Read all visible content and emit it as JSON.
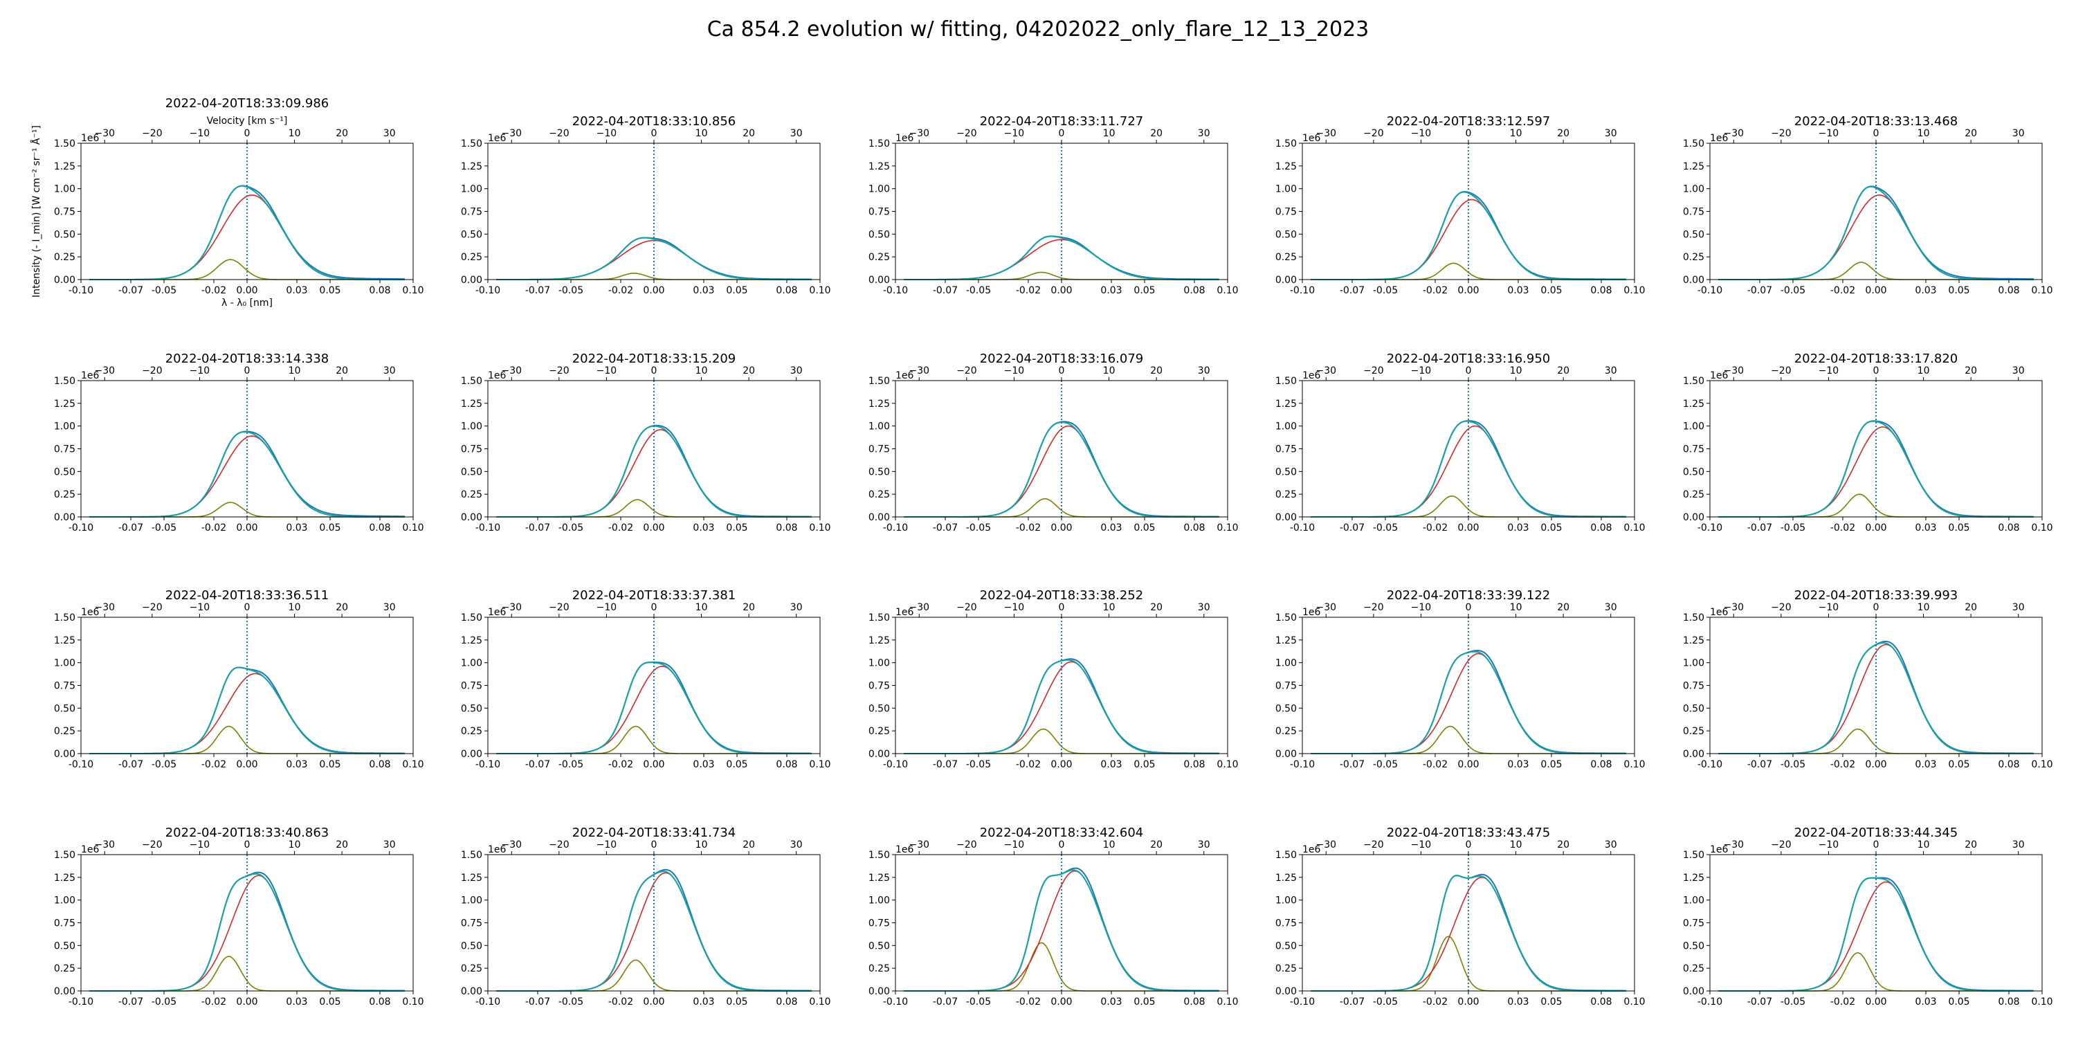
{
  "suptitle": "Ca 854.2 evolution w/ fitting, 04202022_only_flare_12_13_2023",
  "axis_text": {
    "xlabel": "λ - λ₀ [nm]",
    "ylabel": "Intensity (- I_min) [W cm⁻² sr⁻¹ Å⁻¹]",
    "top_xlabel": "Velocity [km s⁻¹]",
    "offset_label": "1e6",
    "x_ticks": [
      "-0.10",
      "-0.07",
      "-0.05",
      "-0.02",
      "0.00",
      "0.03",
      "0.05",
      "0.08",
      "0.10"
    ],
    "top_ticks": [
      "−30",
      "−20",
      "−10",
      "0",
      "10",
      "20",
      "30"
    ],
    "y_ticks": [
      "0.00",
      "0.25",
      "0.50",
      "0.75",
      "1.00",
      "1.25",
      "1.50"
    ]
  },
  "colors": {
    "observed": "#1f77b4",
    "total_fit": "#17a2a2",
    "main_gaussian": "#d62728",
    "secondary_gaussian": "#808000",
    "reference_line": "#1f77b4"
  },
  "chart_data": {
    "type": "line",
    "layout": "4 rows x 5 columns of small multiples",
    "xlim": [
      -0.1,
      0.1
    ],
    "ylim": [
      0,
      1.5
    ],
    "y_scale_offset": "1e6",
    "top_axis_velocity_lim": [
      -35,
      35
    ],
    "reference_vline_x": 0.0,
    "panels": [
      {
        "title": "2022-04-20T18:33:09.986",
        "main": {
          "amp": 0.93,
          "center": 0.003,
          "width": 0.018
        },
        "secondary": {
          "amp": 0.22,
          "center": -0.01,
          "width": 0.008
        },
        "tail": 0.02
      },
      {
        "title": "2022-04-20T18:33:10.856",
        "main": {
          "amp": 0.43,
          "center": 0.0,
          "width": 0.02
        },
        "secondary": {
          "amp": 0.07,
          "center": -0.012,
          "width": 0.007
        },
        "tail": 0.01
      },
      {
        "title": "2022-04-20T18:33:11.727",
        "main": {
          "amp": 0.44,
          "center": 0.0,
          "width": 0.02
        },
        "secondary": {
          "amp": 0.08,
          "center": -0.012,
          "width": 0.007
        },
        "tail": 0.01
      },
      {
        "title": "2022-04-20T18:33:12.597",
        "main": {
          "amp": 0.88,
          "center": 0.002,
          "width": 0.016
        },
        "secondary": {
          "amp": 0.18,
          "center": -0.009,
          "width": 0.007
        },
        "tail": 0.01
      },
      {
        "title": "2022-04-20T18:33:13.468",
        "main": {
          "amp": 0.93,
          "center": 0.002,
          "width": 0.017
        },
        "secondary": {
          "amp": 0.19,
          "center": -0.009,
          "width": 0.007
        },
        "tail": 0.02
      },
      {
        "title": "2022-04-20T18:33:14.338",
        "main": {
          "amp": 0.89,
          "center": 0.003,
          "width": 0.017
        },
        "secondary": {
          "amp": 0.16,
          "center": -0.01,
          "width": 0.007
        },
        "tail": 0.02
      },
      {
        "title": "2022-04-20T18:33:15.209",
        "main": {
          "amp": 0.96,
          "center": 0.004,
          "width": 0.016
        },
        "secondary": {
          "amp": 0.19,
          "center": -0.01,
          "width": 0.007
        },
        "tail": 0.01
      },
      {
        "title": "2022-04-20T18:33:16.079",
        "main": {
          "amp": 1.0,
          "center": 0.004,
          "width": 0.016
        },
        "secondary": {
          "amp": 0.2,
          "center": -0.01,
          "width": 0.007
        },
        "tail": 0.01
      },
      {
        "title": "2022-04-20T18:33:16.950",
        "main": {
          "amp": 1.0,
          "center": 0.004,
          "width": 0.016
        },
        "secondary": {
          "amp": 0.23,
          "center": -0.01,
          "width": 0.007
        },
        "tail": 0.01
      },
      {
        "title": "2022-04-20T18:33:17.820",
        "main": {
          "amp": 0.99,
          "center": 0.004,
          "width": 0.016
        },
        "secondary": {
          "amp": 0.25,
          "center": -0.01,
          "width": 0.007
        },
        "tail": 0.01
      },
      {
        "title": "2022-04-20T18:33:36.511",
        "main": {
          "amp": 0.88,
          "center": 0.005,
          "width": 0.017
        },
        "secondary": {
          "amp": 0.3,
          "center": -0.011,
          "width": 0.007
        },
        "tail": 0.01
      },
      {
        "title": "2022-04-20T18:33:37.381",
        "main": {
          "amp": 0.96,
          "center": 0.005,
          "width": 0.016
        },
        "secondary": {
          "amp": 0.3,
          "center": -0.011,
          "width": 0.007
        },
        "tail": 0.01
      },
      {
        "title": "2022-04-20T18:33:38.252",
        "main": {
          "amp": 1.01,
          "center": 0.006,
          "width": 0.016
        },
        "secondary": {
          "amp": 0.27,
          "center": -0.011,
          "width": 0.007
        },
        "tail": 0.01
      },
      {
        "title": "2022-04-20T18:33:39.122",
        "main": {
          "amp": 1.1,
          "center": 0.006,
          "width": 0.016
        },
        "secondary": {
          "amp": 0.3,
          "center": -0.011,
          "width": 0.007
        },
        "tail": 0.01
      },
      {
        "title": "2022-04-20T18:33:39.993",
        "main": {
          "amp": 1.2,
          "center": 0.006,
          "width": 0.016
        },
        "secondary": {
          "amp": 0.27,
          "center": -0.011,
          "width": 0.007
        },
        "tail": 0.01
      },
      {
        "title": "2022-04-20T18:33:40.863",
        "main": {
          "amp": 1.27,
          "center": 0.007,
          "width": 0.016
        },
        "secondary": {
          "amp": 0.38,
          "center": -0.011,
          "width": 0.007
        },
        "tail": 0.01
      },
      {
        "title": "2022-04-20T18:33:41.734",
        "main": {
          "amp": 1.3,
          "center": 0.007,
          "width": 0.016
        },
        "secondary": {
          "amp": 0.34,
          "center": -0.011,
          "width": 0.007
        },
        "tail": 0.01
      },
      {
        "title": "2022-04-20T18:33:42.604",
        "main": {
          "amp": 1.32,
          "center": 0.008,
          "width": 0.016
        },
        "secondary": {
          "amp": 0.53,
          "center": -0.012,
          "width": 0.007
        },
        "tail": 0.01
      },
      {
        "title": "2022-04-20T18:33:43.475",
        "main": {
          "amp": 1.25,
          "center": 0.008,
          "width": 0.016
        },
        "secondary": {
          "amp": 0.6,
          "center": -0.012,
          "width": 0.007
        },
        "tail": 0.01
      },
      {
        "title": "2022-04-20T18:33:44.345",
        "main": {
          "amp": 1.2,
          "center": 0.006,
          "width": 0.016
        },
        "secondary": {
          "amp": 0.42,
          "center": -0.011,
          "width": 0.007
        },
        "tail": 0.01
      }
    ]
  }
}
